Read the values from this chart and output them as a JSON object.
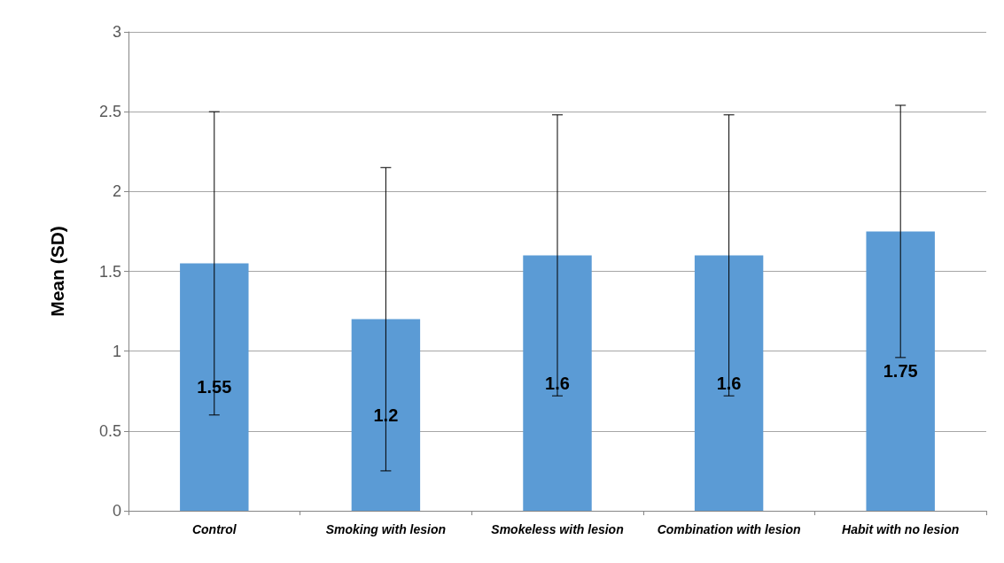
{
  "chart_data": {
    "type": "bar",
    "ylabel": "Mean (SD)",
    "categories": [
      "Control",
      "Smoking with lesion",
      "Smokeless with lesion",
      "Combination with lesion",
      "Habit with no lesion"
    ],
    "values": [
      1.55,
      1.2,
      1.6,
      1.6,
      1.75
    ],
    "errors": [
      0.95,
      0.95,
      0.88,
      0.88,
      0.79
    ],
    "color": "#5b9bd5",
    "ylim": [
      0,
      3
    ],
    "yticks": [
      0,
      0.5,
      1,
      1.5,
      2,
      2.5,
      3
    ],
    "grid": "y",
    "data_labels": true
  }
}
